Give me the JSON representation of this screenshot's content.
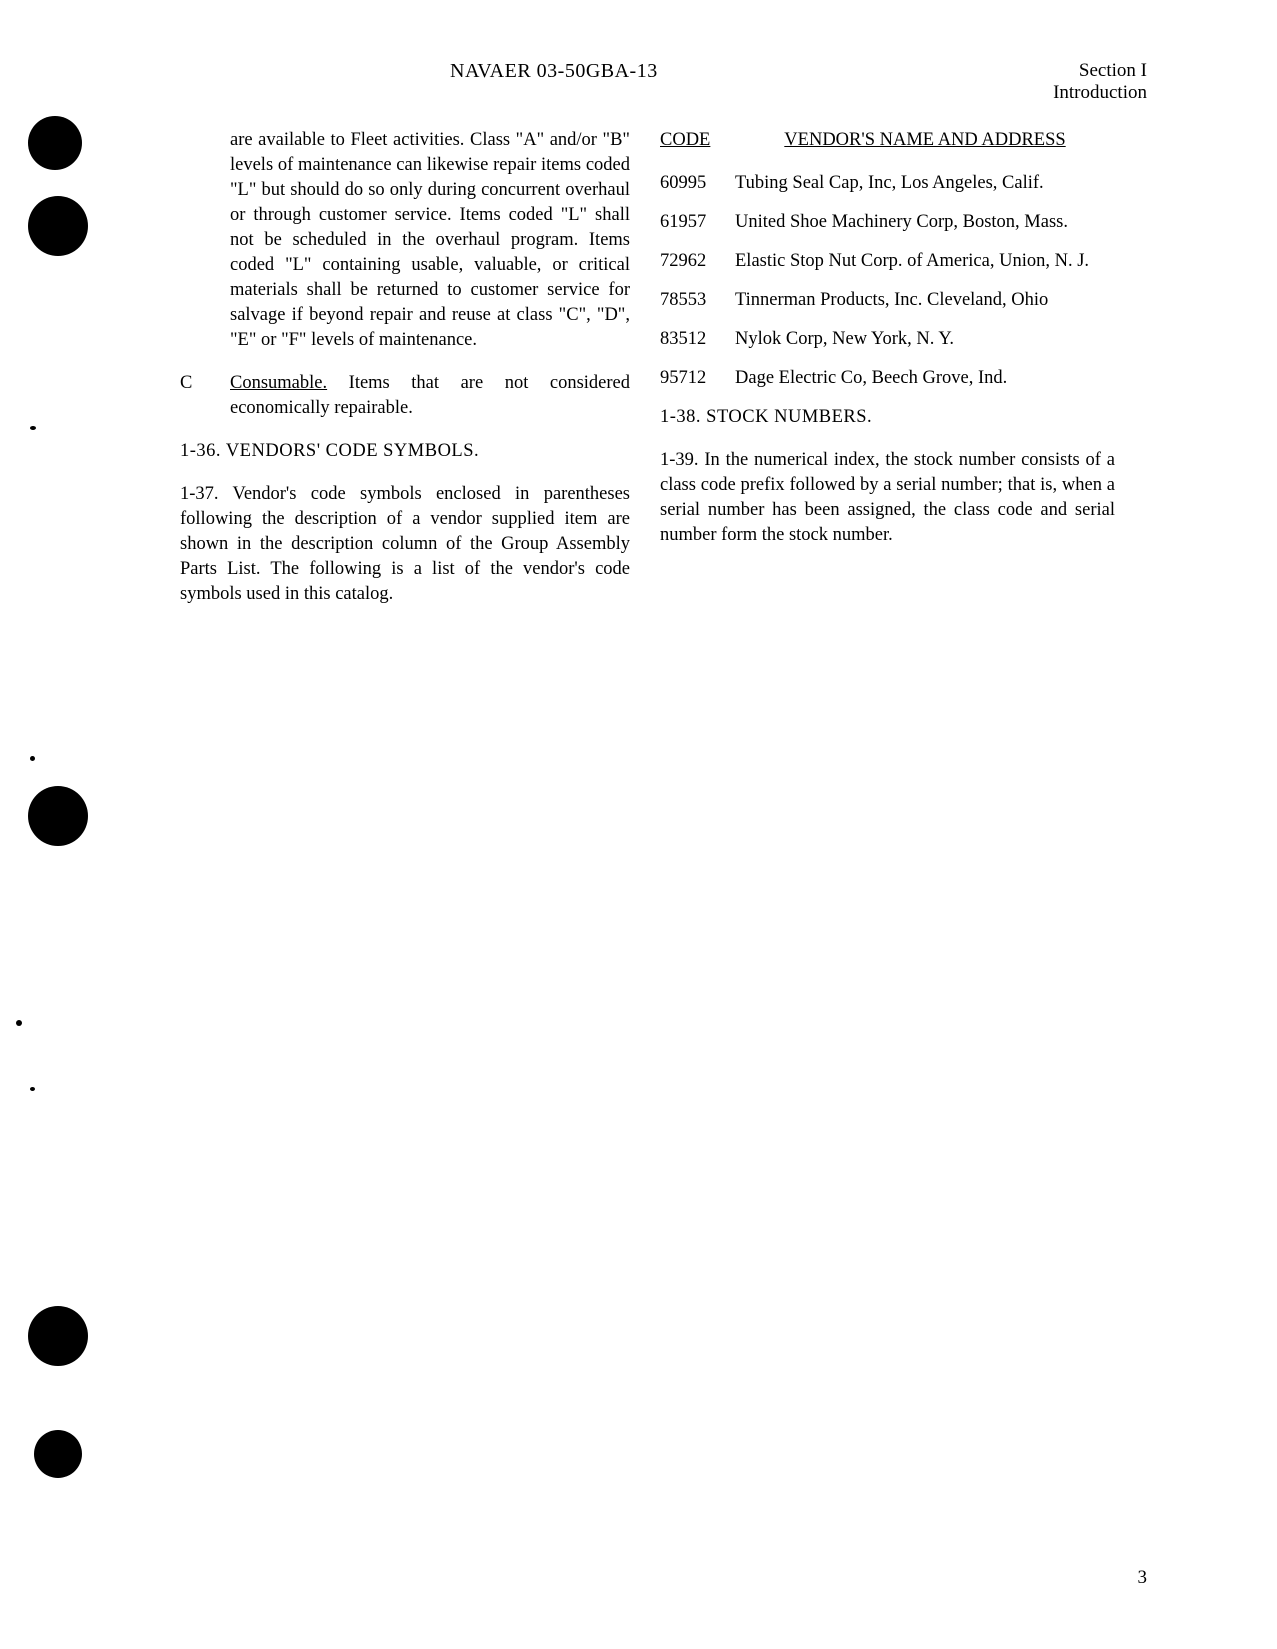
{
  "header": {
    "doc_number": "NAVAER 03-50GBA-13",
    "section": "Section I",
    "subsection": "Introduction"
  },
  "left_column": {
    "para_continued": "are available to Fleet activities. Class \"A\" and/or \"B\" levels of maintenance can likewise repair items coded \"L\" but should do so only during concurrent overhaul or through customer service. Items coded \"L\" shall not be scheduled in the overhaul program. Items coded \"L\" containing usable, valuable, or critical materials shall be returned to customer service for salvage if beyond repair and reuse at class \"C\", \"D\", \"E\" or \"F\" levels of maintenance.",
    "item_c_label": "C",
    "item_c_term": "Consumable.",
    "item_c_text": " Items that are not considered economically repairable.",
    "heading_136": "1-36. VENDORS' CODE SYMBOLS.",
    "para_137": "1-37. Vendor's code symbols enclosed in parentheses following the description of a vendor supplied item are shown in the description column of the Group Assembly Parts List. The following is a list of the vendor's code symbols used in this catalog."
  },
  "right_column": {
    "code_header": "CODE",
    "vendor_header": "VENDOR'S NAME AND ADDRESS",
    "vendors": [
      {
        "code": "60995",
        "name": "Tubing Seal Cap, Inc, Los Angeles, Calif."
      },
      {
        "code": "61957",
        "name": "United Shoe Machinery Corp, Boston, Mass."
      },
      {
        "code": "72962",
        "name": "Elastic Stop Nut Corp. of America, Union, N. J."
      },
      {
        "code": "78553",
        "name": "Tinnerman Products, Inc. Cleveland, Ohio"
      },
      {
        "code": "83512",
        "name": "Nylok Corp, New York, N. Y."
      },
      {
        "code": "95712",
        "name": "Dage Electric Co, Beech Grove, Ind."
      }
    ],
    "heading_138": "1-38. STOCK NUMBERS.",
    "para_139": "1-39. In the numerical index, the stock number consists of a class code prefix followed by a serial number; that is, when a serial number has been assigned, the class code and serial number form the stock number."
  },
  "page_number": "3"
}
